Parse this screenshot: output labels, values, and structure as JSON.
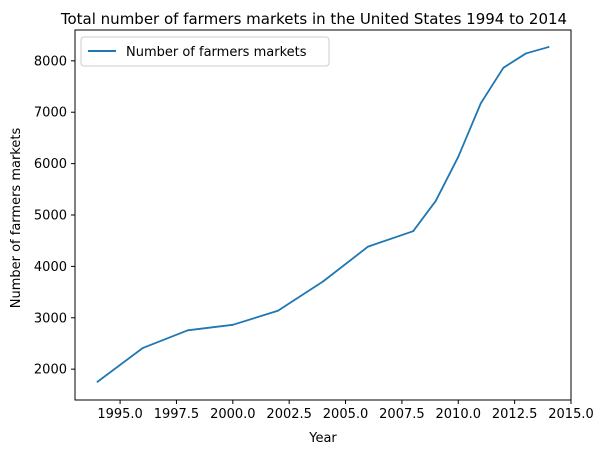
{
  "chart_data": {
    "type": "line",
    "title": "Total number of farmers markets in the United States 1994 to 2014",
    "xlabel": "Year",
    "ylabel": "Number of farmers markets",
    "xlim": [
      1993.0,
      2015.0
    ],
    "ylim": [
      1400,
      8600
    ],
    "x_ticks": [
      1995.0,
      1997.5,
      2000.0,
      2002.5,
      2005.0,
      2007.5,
      2010.0,
      2012.5,
      2015.0
    ],
    "x_tick_labels": [
      "1995.0",
      "1997.5",
      "2000.0",
      "2002.5",
      "2005.0",
      "2007.5",
      "2010.0",
      "2012.5",
      "2015.0"
    ],
    "y_ticks": [
      2000,
      3000,
      4000,
      5000,
      6000,
      7000,
      8000
    ],
    "y_tick_labels": [
      "2000",
      "3000",
      "4000",
      "5000",
      "6000",
      "7000",
      "8000"
    ],
    "grid": false,
    "legend_position": "top-left",
    "series": [
      {
        "name": "Number of farmers markets",
        "color": "#1f77b4",
        "x": [
          1994,
          1996,
          1998,
          2000,
          2002,
          2004,
          2006,
          2008,
          2009,
          2010,
          2011,
          2012,
          2013,
          2014
        ],
        "y": [
          1755,
          2410,
          2756,
          2863,
          3137,
          3706,
          4385,
          4685,
          5274,
          6132,
          7175,
          7864,
          8144,
          8268
        ]
      }
    ]
  }
}
